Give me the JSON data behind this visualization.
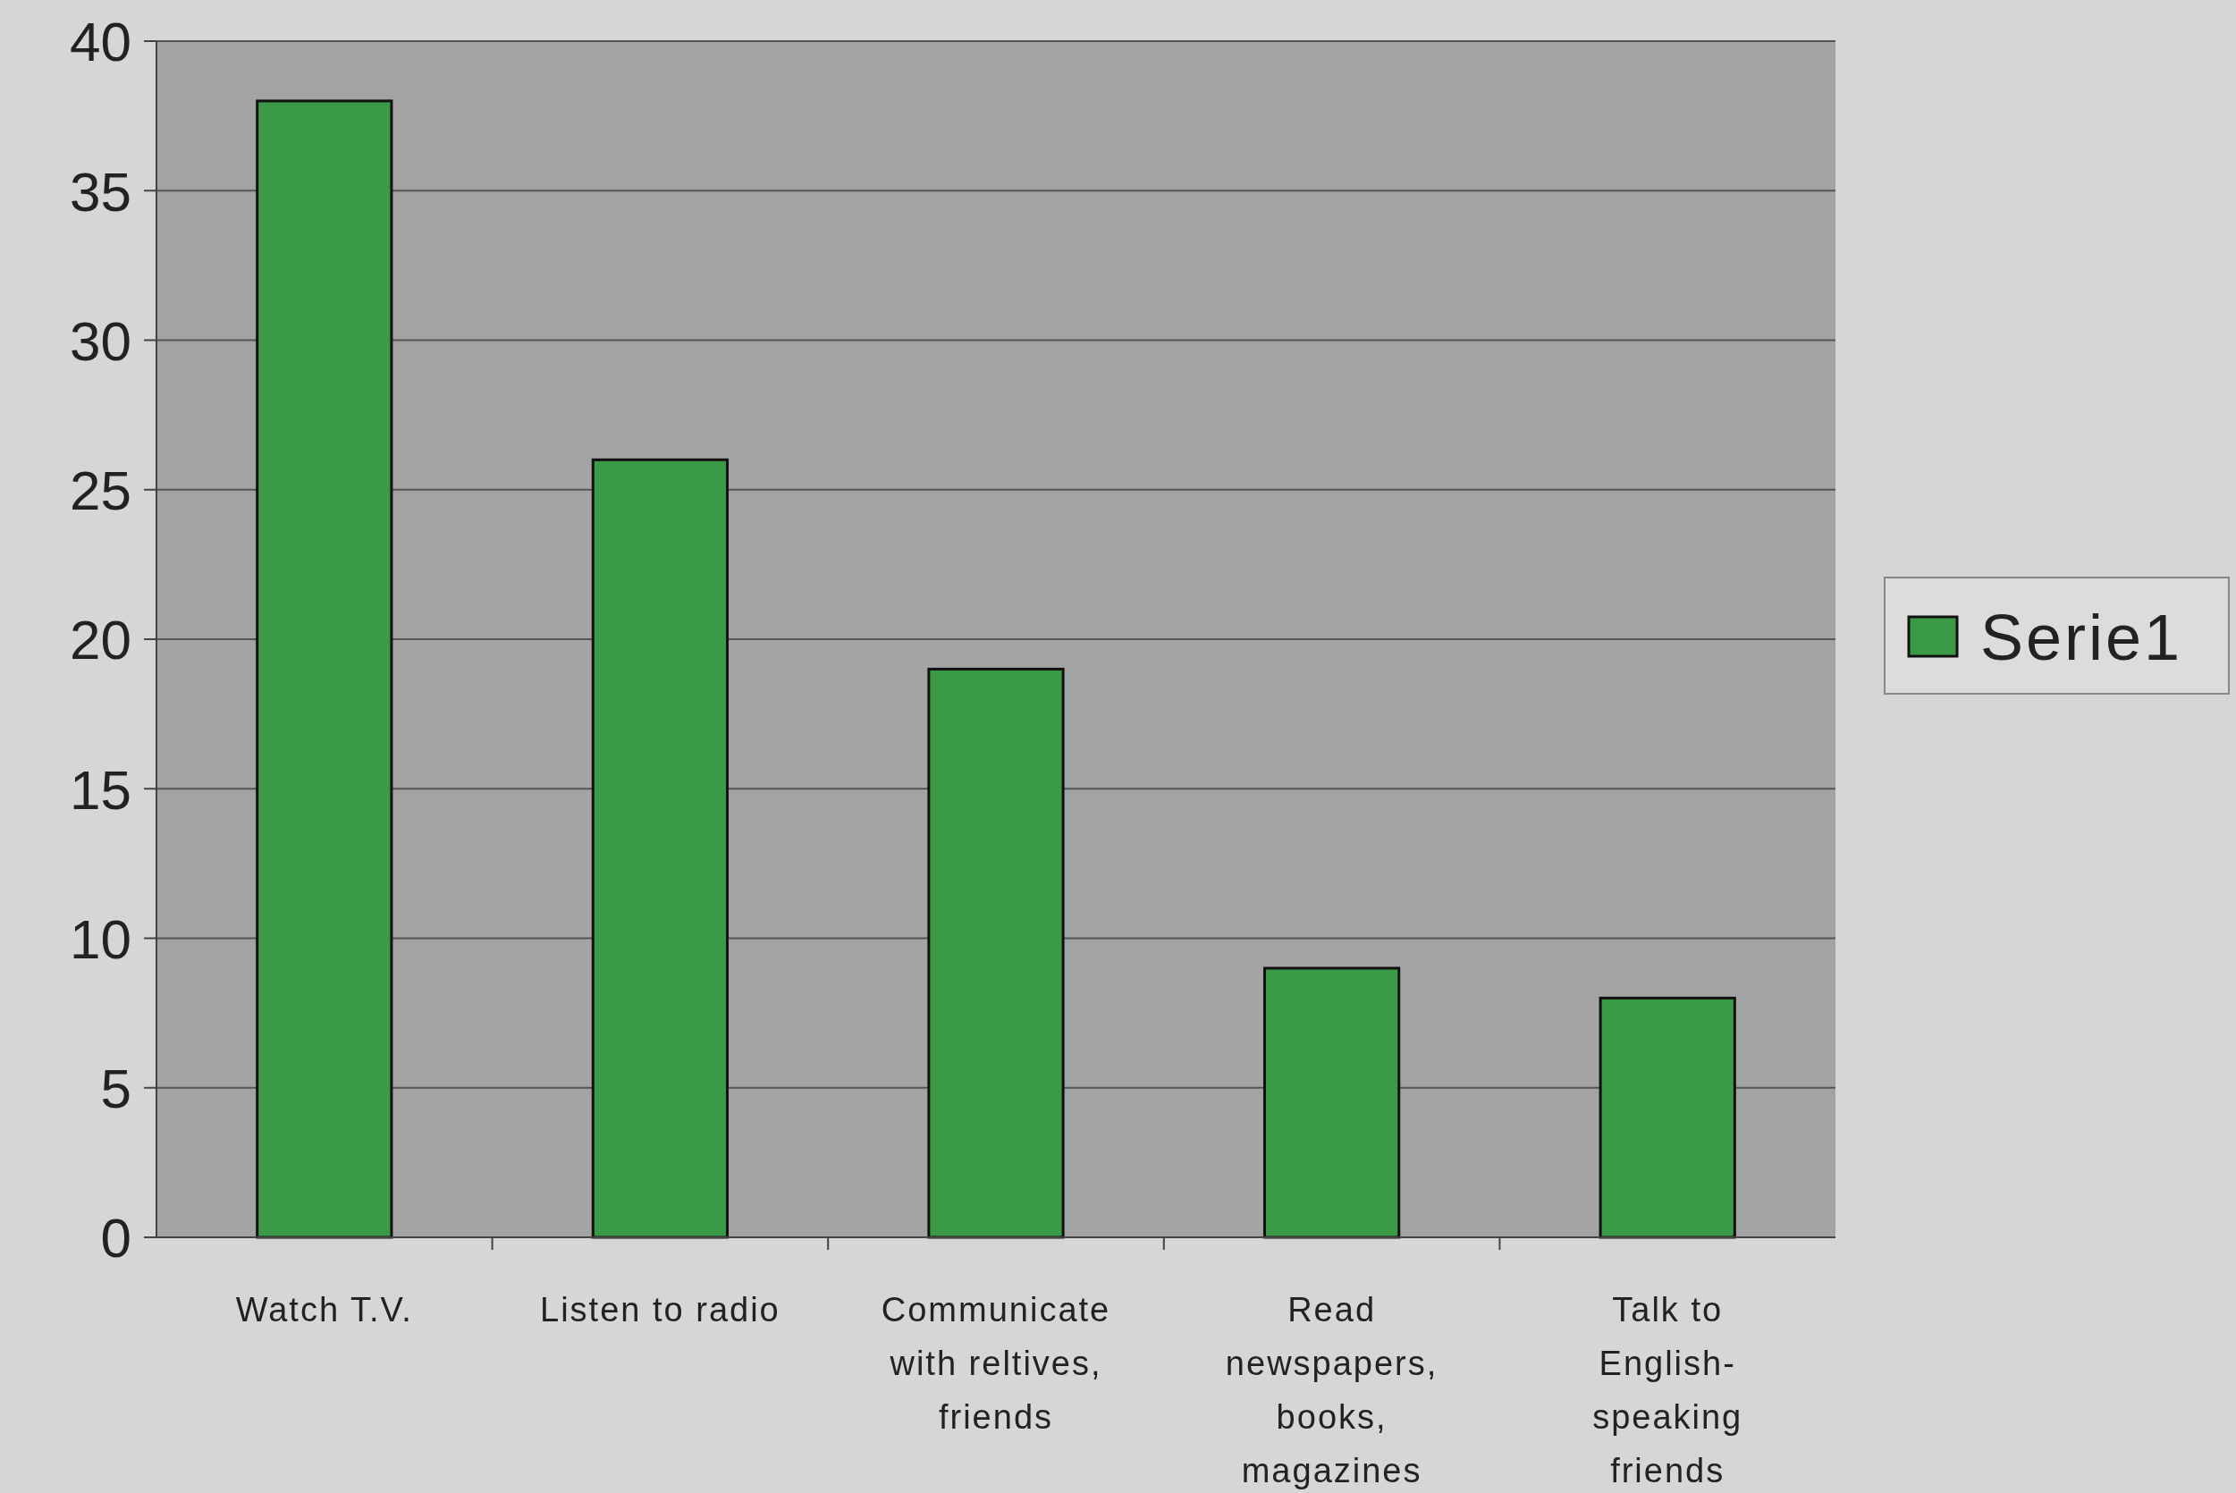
{
  "chart_data": {
    "type": "bar",
    "categories": [
      "Watch T.V.",
      "Listen to radio",
      "Communicate with reltives, friends",
      "Read newspapers, books, magazines",
      "Talk to English-speaking friends"
    ],
    "series": [
      {
        "name": "Serie1",
        "color": "#3b9a45",
        "values": [
          38,
          26,
          19,
          9,
          8
        ]
      }
    ],
    "ylim": [
      0,
      40
    ],
    "yticks": [
      0,
      5,
      10,
      15,
      20,
      25,
      30,
      35,
      40
    ],
    "grid": "y",
    "legend": "right"
  }
}
